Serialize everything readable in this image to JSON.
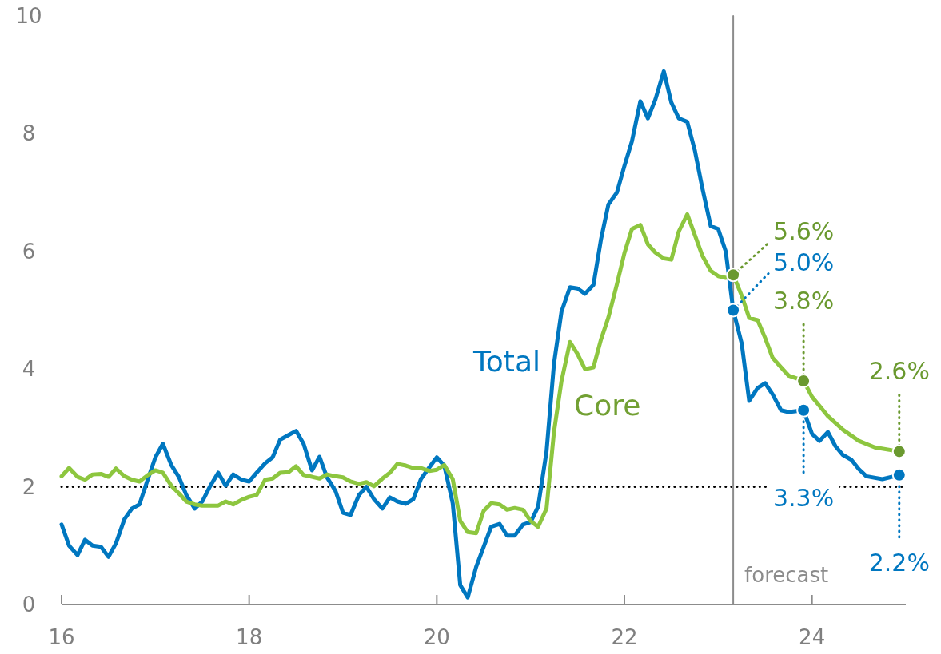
{
  "chart_data": {
    "type": "line",
    "xlim": [
      16,
      25
    ],
    "xticks": [
      16,
      18,
      20,
      22,
      24
    ],
    "ylim": [
      0,
      10
    ],
    "yticks": [
      0,
      2,
      4,
      6,
      8,
      10
    ],
    "grid": false,
    "series": [
      {
        "name": "Total",
        "color": "#0077c0",
        "x": [
          16.0,
          16.08,
          16.17,
          16.25,
          16.33,
          16.42,
          16.5,
          16.58,
          16.67,
          16.75,
          16.83,
          16.92,
          17.0,
          17.08,
          17.17,
          17.25,
          17.33,
          17.42,
          17.5,
          17.58,
          17.67,
          17.75,
          17.83,
          17.92,
          18.0,
          18.08,
          18.17,
          18.25,
          18.33,
          18.42,
          18.5,
          18.58,
          18.67,
          18.75,
          18.83,
          18.92,
          19.0,
          19.08,
          19.17,
          19.25,
          19.33,
          19.42,
          19.5,
          19.58,
          19.67,
          19.75,
          19.83,
          19.92,
          20.0,
          20.08,
          20.17,
          20.25,
          20.33,
          20.42,
          20.5,
          20.58,
          20.67,
          20.75,
          20.83,
          20.92,
          21.0,
          21.08,
          21.17,
          21.25,
          21.33,
          21.42,
          21.5,
          21.58,
          21.67,
          21.75,
          21.83,
          21.92,
          22.0,
          22.08,
          22.17,
          22.25,
          22.33,
          22.42,
          22.5,
          22.58,
          22.67,
          22.75,
          22.83,
          22.92,
          23.0,
          23.08,
          23.16,
          23.25,
          23.33,
          23.42,
          23.5,
          23.58,
          23.67,
          23.75,
          23.91,
          24.0,
          24.08,
          24.17,
          24.25,
          24.33,
          24.42,
          24.5,
          24.58,
          24.75,
          24.93
        ],
        "values": [
          1.36,
          1.0,
          0.84,
          1.1,
          1.0,
          0.98,
          0.81,
          1.04,
          1.45,
          1.63,
          1.7,
          2.13,
          2.5,
          2.73,
          2.37,
          2.17,
          1.86,
          1.63,
          1.75,
          2.0,
          2.24,
          2.02,
          2.21,
          2.12,
          2.09,
          2.24,
          2.4,
          2.5,
          2.8,
          2.88,
          2.95,
          2.73,
          2.28,
          2.51,
          2.16,
          1.93,
          1.56,
          1.52,
          1.86,
          2.0,
          1.79,
          1.63,
          1.82,
          1.75,
          1.71,
          1.79,
          2.13,
          2.33,
          2.5,
          2.36,
          1.72,
          0.33,
          0.12,
          0.64,
          0.98,
          1.32,
          1.37,
          1.17,
          1.17,
          1.36,
          1.4,
          1.66,
          2.6,
          4.1,
          4.98,
          5.39,
          5.37,
          5.28,
          5.43,
          6.2,
          6.8,
          7.0,
          7.45,
          7.87,
          8.55,
          8.26,
          8.58,
          9.06,
          8.53,
          8.26,
          8.2,
          7.72,
          7.08,
          6.43,
          6.38,
          6.0,
          5.0,
          4.44,
          3.46,
          3.68,
          3.76,
          3.57,
          3.3,
          3.27,
          3.3,
          2.9,
          2.78,
          2.93,
          2.69,
          2.54,
          2.46,
          2.3,
          2.18,
          2.13,
          2.2
        ]
      },
      {
        "name": "Core",
        "color": "#8dc63f",
        "x": [
          16.0,
          16.08,
          16.17,
          16.25,
          16.33,
          16.42,
          16.5,
          16.58,
          16.67,
          16.75,
          16.83,
          16.92,
          17.0,
          17.08,
          17.17,
          17.25,
          17.33,
          17.42,
          17.5,
          17.58,
          17.67,
          17.75,
          17.83,
          17.92,
          18.0,
          18.08,
          18.17,
          18.25,
          18.33,
          18.42,
          18.5,
          18.58,
          18.67,
          18.75,
          18.83,
          18.92,
          19.0,
          19.08,
          19.17,
          19.25,
          19.33,
          19.42,
          19.5,
          19.58,
          19.67,
          19.75,
          19.83,
          19.92,
          20.0,
          20.08,
          20.17,
          20.25,
          20.33,
          20.42,
          20.5,
          20.58,
          20.67,
          20.75,
          20.83,
          20.92,
          21.0,
          21.08,
          21.17,
          21.25,
          21.33,
          21.42,
          21.5,
          21.58,
          21.67,
          21.75,
          21.83,
          21.92,
          22.0,
          22.08,
          22.17,
          22.25,
          22.33,
          22.42,
          22.5,
          22.58,
          22.67,
          22.75,
          22.83,
          22.92,
          23.0,
          23.08,
          23.16,
          23.25,
          23.33,
          23.42,
          23.5,
          23.58,
          23.67,
          23.75,
          23.91,
          24.0,
          24.17,
          24.33,
          24.5,
          24.67,
          24.93
        ],
        "values": [
          2.18,
          2.32,
          2.17,
          2.12,
          2.21,
          2.22,
          2.17,
          2.31,
          2.18,
          2.12,
          2.09,
          2.2,
          2.28,
          2.24,
          2.02,
          1.89,
          1.75,
          1.7,
          1.68,
          1.68,
          1.68,
          1.75,
          1.7,
          1.78,
          1.83,
          1.86,
          2.12,
          2.14,
          2.24,
          2.25,
          2.35,
          2.2,
          2.17,
          2.14,
          2.21,
          2.18,
          2.16,
          2.09,
          2.05,
          2.08,
          2.01,
          2.14,
          2.24,
          2.39,
          2.36,
          2.32,
          2.32,
          2.27,
          2.29,
          2.37,
          2.13,
          1.42,
          1.23,
          1.21,
          1.59,
          1.72,
          1.7,
          1.61,
          1.64,
          1.61,
          1.42,
          1.32,
          1.63,
          2.94,
          3.8,
          4.46,
          4.26,
          4.0,
          4.03,
          4.5,
          4.88,
          5.44,
          5.97,
          6.38,
          6.45,
          6.12,
          5.98,
          5.88,
          5.86,
          6.34,
          6.63,
          6.28,
          5.93,
          5.67,
          5.58,
          5.55,
          5.6,
          5.25,
          4.87,
          4.83,
          4.53,
          4.19,
          4.03,
          3.89,
          3.8,
          3.53,
          3.2,
          2.97,
          2.78,
          2.67,
          2.6
        ]
      },
      {
        "type": "scatter",
        "color": "#6a992f",
        "marker": "circle",
        "x": [
          23.16,
          23.91,
          24.93
        ],
        "values": [
          5.6,
          3.8,
          2.6
        ],
        "value_labels": [
          "5.6%",
          "3.8%",
          "2.6%"
        ]
      },
      {
        "type": "scatter",
        "color": "#0077c0",
        "marker": "circle",
        "x": [
          23.16,
          23.91,
          24.93
        ],
        "values": [
          5.0,
          3.3,
          2.2
        ],
        "value_labels": [
          "5.0%",
          "3.3%",
          "2.2%"
        ]
      }
    ],
    "ref_lines": [
      {
        "axis": "y",
        "value": 2,
        "color": "#000000",
        "line_style": "dotted"
      },
      {
        "axis": "x",
        "value": 23.16,
        "color": "#8c8c8c",
        "line_style": "solid",
        "label": "forecast"
      }
    ]
  }
}
